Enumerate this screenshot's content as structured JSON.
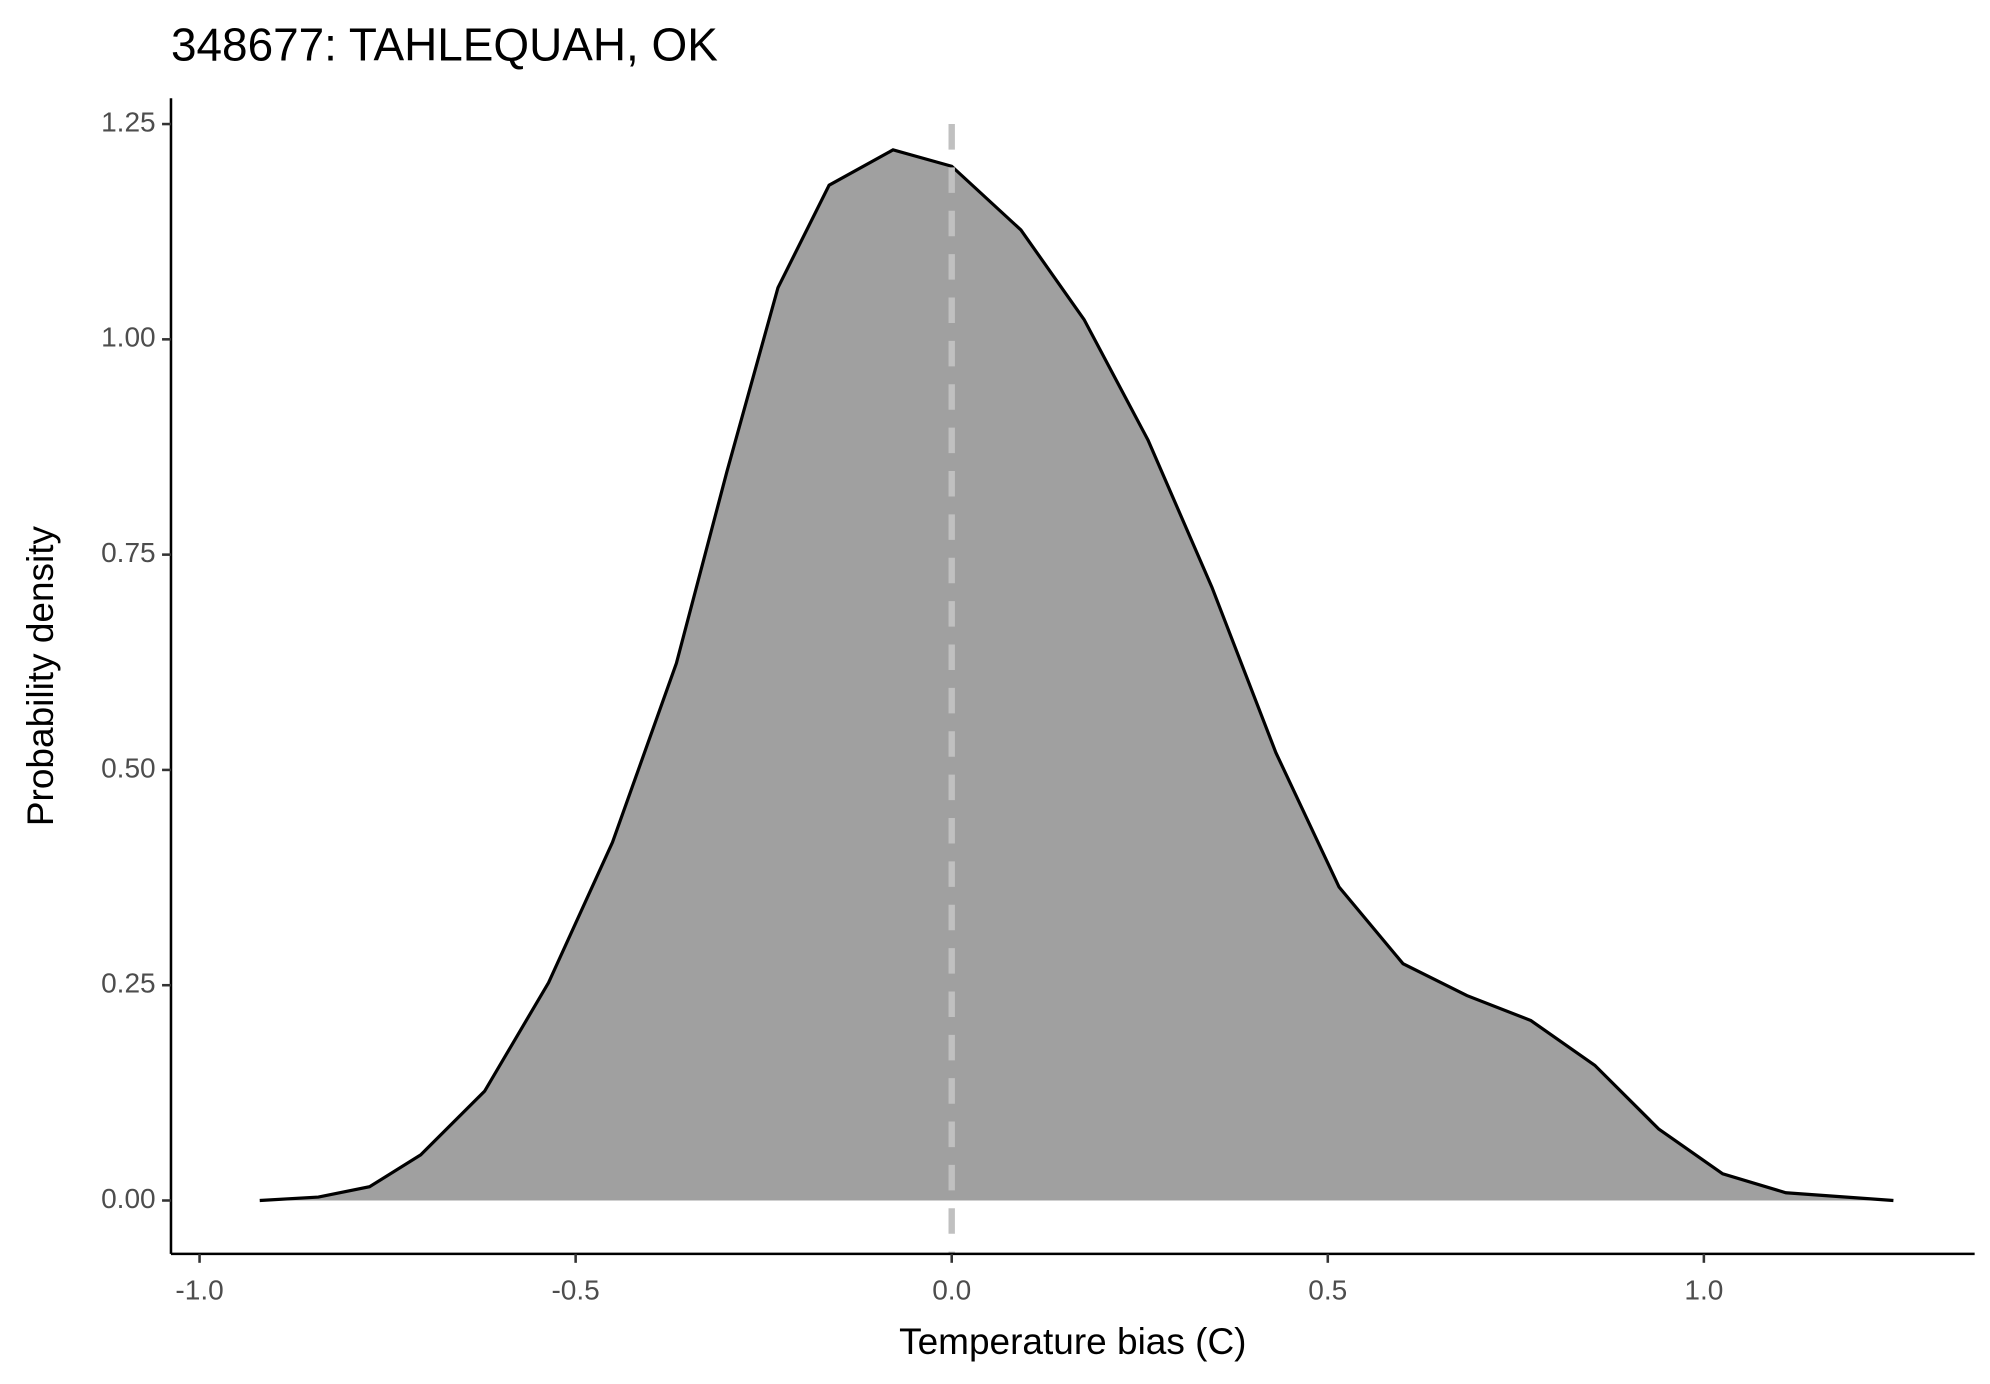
{
  "chart_data": {
    "type": "area",
    "title": "348677: TAHLEQUAH, OK",
    "xlabel": "Temperature bias (C)",
    "ylabel": "Probability density",
    "x": [
      -0.92,
      -0.842,
      -0.774,
      -0.706,
      -0.621,
      -0.536,
      -0.451,
      -0.366,
      -0.299,
      -0.231,
      -0.163,
      -0.078,
      0,
      0.092,
      0.176,
      0.261,
      0.346,
      0.431,
      0.515,
      0.6,
      0.685,
      0.77,
      0.855,
      0.94,
      1.025,
      1.109,
      1.252
    ],
    "values": [
      0,
      0.004,
      0.016,
      0.053,
      0.127,
      0.253,
      0.416,
      0.624,
      0.846,
      1.06,
      1.179,
      1.22,
      1.201,
      1.127,
      1.023,
      0.883,
      0.712,
      0.52,
      0.364,
      0.275,
      0.238,
      0.209,
      0.157,
      0.083,
      0.031,
      0.009,
      0
    ],
    "color": "#a0a0a0",
    "line_color": "#000000",
    "vline": 0,
    "vline_color": "#c0c0c0",
    "xlim": [
      -1.038,
      1.36
    ],
    "ylim": [
      -0.062,
      1.28
    ],
    "xticks": [
      {
        "value": -1,
        "label": "-1.0"
      },
      -0.5,
      {
        "value": 0,
        "label": "0.0"
      },
      0.5,
      {
        "value": 1,
        "label": "1.0"
      }
    ],
    "yticks": [
      {
        "value": 0,
        "label": "0.00"
      },
      0.25,
      {
        "value": 0.5,
        "label": "0.50"
      },
      0.75,
      {
        "value": 1,
        "label": "1.00"
      },
      1.25
    ],
    "grid": false
  }
}
